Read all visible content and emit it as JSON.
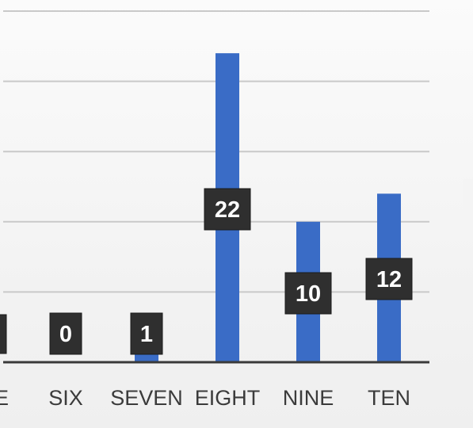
{
  "chart_data": {
    "type": "bar",
    "categories": [
      "FIVE",
      "SIX",
      "SEVEN",
      "EIGHT",
      "NINE",
      "TEN"
    ],
    "values": [
      0,
      0,
      1,
      22,
      10,
      12
    ],
    "data_labels": [
      "",
      "0",
      "1",
      "22",
      "10",
      "12"
    ],
    "ylim": [
      0,
      25
    ],
    "grid": true,
    "legend": "none",
    "colors": {
      "bar": "#3a6cc6",
      "label_box": "#2f2f2f",
      "label_text": "#ffffff",
      "grid": "#c9c9c9",
      "axis": "#3a3a3a"
    }
  }
}
